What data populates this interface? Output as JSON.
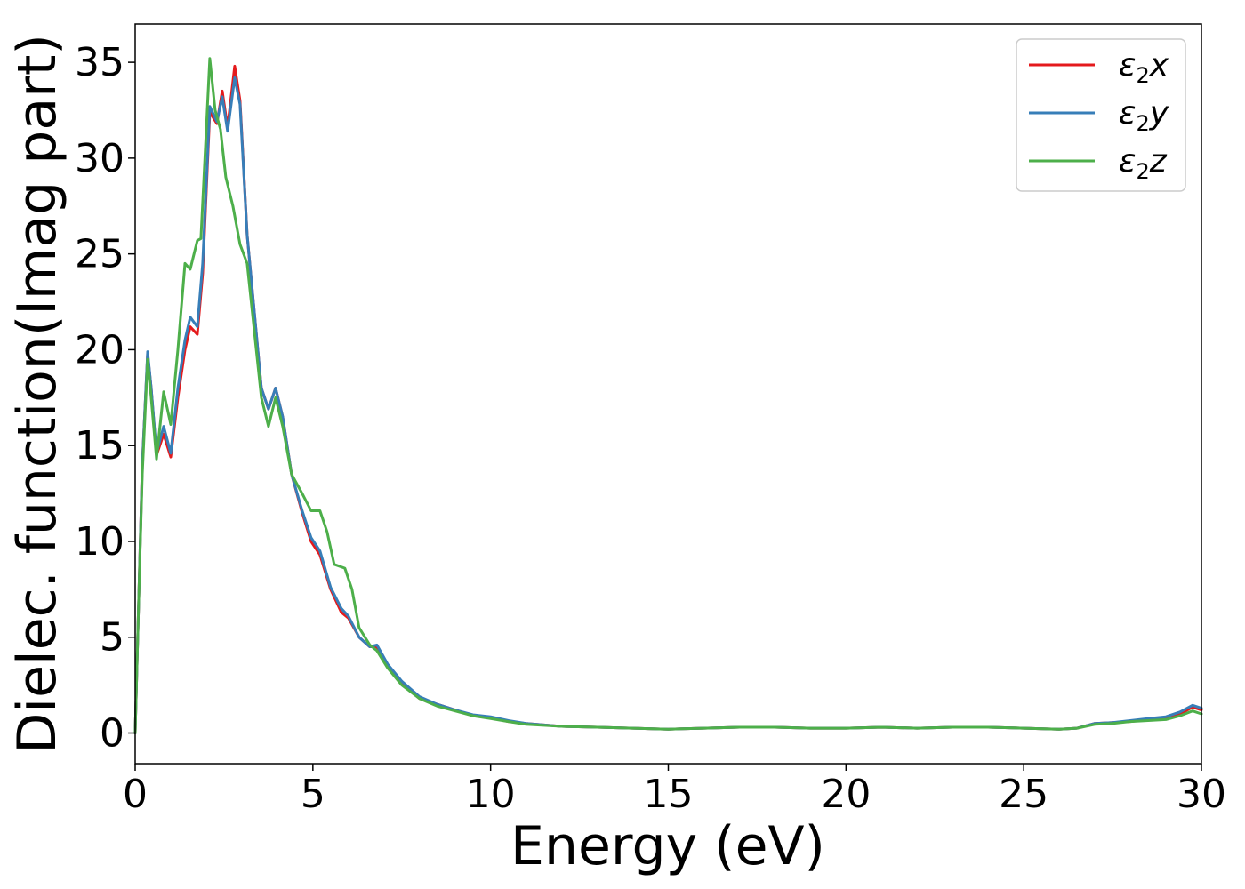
{
  "chart_data": {
    "type": "line",
    "title": "",
    "xlabel": "Energy (eV)",
    "ylabel": "Dielec. function(Imag part)",
    "xlim": [
      0,
      30
    ],
    "ylim": [
      -1.6,
      37
    ],
    "xticks": [
      0,
      5,
      10,
      15,
      20,
      25,
      30
    ],
    "yticks": [
      0,
      5,
      10,
      15,
      20,
      25,
      30,
      35
    ],
    "grid": false,
    "legend_position": "top-right",
    "legend_entries": [
      {
        "base": "ε",
        "sub": "2",
        "tail": "x"
      },
      {
        "base": "ε",
        "sub": "2",
        "tail": "y"
      },
      {
        "base": "ε",
        "sub": "2",
        "tail": "z"
      }
    ],
    "series": [
      {
        "name": "ε2x",
        "color": "#e41a1c",
        "points": [
          [
            0,
            0
          ],
          [
            0.1,
            7
          ],
          [
            0.2,
            14
          ],
          [
            0.35,
            19.8
          ],
          [
            0.45,
            18
          ],
          [
            0.6,
            14.5
          ],
          [
            0.8,
            15.6
          ],
          [
            1.0,
            14.4
          ],
          [
            1.2,
            17.5
          ],
          [
            1.4,
            20
          ],
          [
            1.55,
            21.2
          ],
          [
            1.75,
            20.8
          ],
          [
            1.9,
            24
          ],
          [
            2.1,
            32.4
          ],
          [
            2.3,
            31.8
          ],
          [
            2.45,
            33.5
          ],
          [
            2.6,
            31.6
          ],
          [
            2.8,
            34.8
          ],
          [
            2.95,
            33
          ],
          [
            3.15,
            26
          ],
          [
            3.35,
            22
          ],
          [
            3.55,
            18
          ],
          [
            3.75,
            16.9
          ],
          [
            3.95,
            18
          ],
          [
            4.15,
            16.5
          ],
          [
            4.4,
            13.5
          ],
          [
            4.7,
            11.5
          ],
          [
            4.95,
            10
          ],
          [
            5.2,
            9.3
          ],
          [
            5.5,
            7.5
          ],
          [
            5.8,
            6.3
          ],
          [
            6.0,
            6
          ],
          [
            6.3,
            5
          ],
          [
            6.6,
            4.5
          ],
          [
            6.8,
            4.5
          ],
          [
            7.1,
            3.5
          ],
          [
            7.5,
            2.6
          ],
          [
            8,
            1.8
          ],
          [
            8.5,
            1.5
          ],
          [
            9,
            1.2
          ],
          [
            9.5,
            0.9
          ],
          [
            10,
            0.8
          ],
          [
            10.5,
            0.6
          ],
          [
            11,
            0.5
          ],
          [
            12,
            0.35
          ],
          [
            13,
            0.3
          ],
          [
            14,
            0.25
          ],
          [
            15,
            0.2
          ],
          [
            16,
            0.25
          ],
          [
            17,
            0.3
          ],
          [
            18,
            0.3
          ],
          [
            19,
            0.25
          ],
          [
            20,
            0.25
          ],
          [
            21,
            0.3
          ],
          [
            22,
            0.25
          ],
          [
            23,
            0.3
          ],
          [
            24,
            0.3
          ],
          [
            25,
            0.25
          ],
          [
            26,
            0.2
          ],
          [
            26.5,
            0.25
          ],
          [
            27,
            0.5
          ],
          [
            27.5,
            0.55
          ],
          [
            28,
            0.6
          ],
          [
            28.5,
            0.7
          ],
          [
            29,
            0.8
          ],
          [
            29.4,
            1.0
          ],
          [
            29.75,
            1.35
          ],
          [
            30,
            1.2
          ]
        ]
      },
      {
        "name": "ε2y",
        "color": "#377eb8",
        "points": [
          [
            0,
            0
          ],
          [
            0.1,
            7
          ],
          [
            0.2,
            14
          ],
          [
            0.35,
            19.9
          ],
          [
            0.45,
            18
          ],
          [
            0.6,
            14.6
          ],
          [
            0.8,
            16
          ],
          [
            1.0,
            14.6
          ],
          [
            1.2,
            18
          ],
          [
            1.4,
            20.5
          ],
          [
            1.55,
            21.7
          ],
          [
            1.75,
            21.2
          ],
          [
            1.9,
            24.5
          ],
          [
            2.1,
            32.7
          ],
          [
            2.3,
            31.9
          ],
          [
            2.45,
            33.2
          ],
          [
            2.6,
            31.4
          ],
          [
            2.8,
            34.2
          ],
          [
            2.95,
            32.8
          ],
          [
            3.15,
            26
          ],
          [
            3.35,
            22
          ],
          [
            3.55,
            18
          ],
          [
            3.75,
            16.9
          ],
          [
            3.95,
            18
          ],
          [
            4.15,
            16.5
          ],
          [
            4.4,
            13.5
          ],
          [
            4.7,
            11.6
          ],
          [
            4.95,
            10.2
          ],
          [
            5.2,
            9.5
          ],
          [
            5.5,
            7.6
          ],
          [
            5.8,
            6.5
          ],
          [
            6.0,
            6.1
          ],
          [
            6.3,
            5
          ],
          [
            6.6,
            4.5
          ],
          [
            6.8,
            4.6
          ],
          [
            7.1,
            3.6
          ],
          [
            7.5,
            2.7
          ],
          [
            8,
            1.9
          ],
          [
            8.5,
            1.5
          ],
          [
            9,
            1.2
          ],
          [
            9.5,
            0.95
          ],
          [
            10,
            0.85
          ],
          [
            10.5,
            0.65
          ],
          [
            11,
            0.5
          ],
          [
            12,
            0.35
          ],
          [
            13,
            0.3
          ],
          [
            14,
            0.25
          ],
          [
            15,
            0.2
          ],
          [
            16,
            0.25
          ],
          [
            17,
            0.3
          ],
          [
            18,
            0.3
          ],
          [
            19,
            0.25
          ],
          [
            20,
            0.25
          ],
          [
            21,
            0.3
          ],
          [
            22,
            0.25
          ],
          [
            23,
            0.3
          ],
          [
            24,
            0.3
          ],
          [
            25,
            0.25
          ],
          [
            26,
            0.2
          ],
          [
            26.5,
            0.25
          ],
          [
            27,
            0.5
          ],
          [
            27.5,
            0.55
          ],
          [
            28,
            0.65
          ],
          [
            28.5,
            0.75
          ],
          [
            29,
            0.85
          ],
          [
            29.4,
            1.1
          ],
          [
            29.75,
            1.45
          ],
          [
            30,
            1.3
          ]
        ]
      },
      {
        "name": "ε2z",
        "color": "#4daf4a",
        "points": [
          [
            0,
            0
          ],
          [
            0.1,
            7
          ],
          [
            0.2,
            13.5
          ],
          [
            0.35,
            19.5
          ],
          [
            0.45,
            17.5
          ],
          [
            0.6,
            14.3
          ],
          [
            0.8,
            17.8
          ],
          [
            1.0,
            16.1
          ],
          [
            1.2,
            20
          ],
          [
            1.4,
            24.5
          ],
          [
            1.55,
            24.2
          ],
          [
            1.75,
            25.7
          ],
          [
            1.85,
            25.8
          ],
          [
            2.1,
            35.2
          ],
          [
            2.25,
            32.5
          ],
          [
            2.4,
            31.5
          ],
          [
            2.55,
            29
          ],
          [
            2.75,
            27.5
          ],
          [
            2.95,
            25.5
          ],
          [
            3.15,
            24.5
          ],
          [
            3.35,
            21
          ],
          [
            3.55,
            17.5
          ],
          [
            3.75,
            16
          ],
          [
            3.95,
            17.5
          ],
          [
            4.15,
            16
          ],
          [
            4.4,
            13.5
          ],
          [
            4.7,
            12.5
          ],
          [
            4.95,
            11.6
          ],
          [
            5.2,
            11.6
          ],
          [
            5.4,
            10.5
          ],
          [
            5.6,
            8.8
          ],
          [
            5.9,
            8.6
          ],
          [
            6.1,
            7.5
          ],
          [
            6.3,
            5.5
          ],
          [
            6.6,
            4.6
          ],
          [
            6.8,
            4.3
          ],
          [
            7.1,
            3.4
          ],
          [
            7.5,
            2.5
          ],
          [
            8,
            1.8
          ],
          [
            8.5,
            1.4
          ],
          [
            9,
            1.15
          ],
          [
            9.5,
            0.9
          ],
          [
            10,
            0.75
          ],
          [
            10.5,
            0.6
          ],
          [
            11,
            0.45
          ],
          [
            12,
            0.35
          ],
          [
            13,
            0.3
          ],
          [
            14,
            0.25
          ],
          [
            15,
            0.2
          ],
          [
            16,
            0.25
          ],
          [
            17,
            0.3
          ],
          [
            18,
            0.3
          ],
          [
            19,
            0.25
          ],
          [
            20,
            0.25
          ],
          [
            21,
            0.3
          ],
          [
            22,
            0.25
          ],
          [
            23,
            0.3
          ],
          [
            24,
            0.3
          ],
          [
            25,
            0.25
          ],
          [
            26,
            0.2
          ],
          [
            26.5,
            0.25
          ],
          [
            27,
            0.45
          ],
          [
            27.5,
            0.5
          ],
          [
            28,
            0.6
          ],
          [
            28.5,
            0.65
          ],
          [
            29,
            0.7
          ],
          [
            29.4,
            0.9
          ],
          [
            29.75,
            1.15
          ],
          [
            30,
            1.0
          ]
        ]
      }
    ]
  }
}
